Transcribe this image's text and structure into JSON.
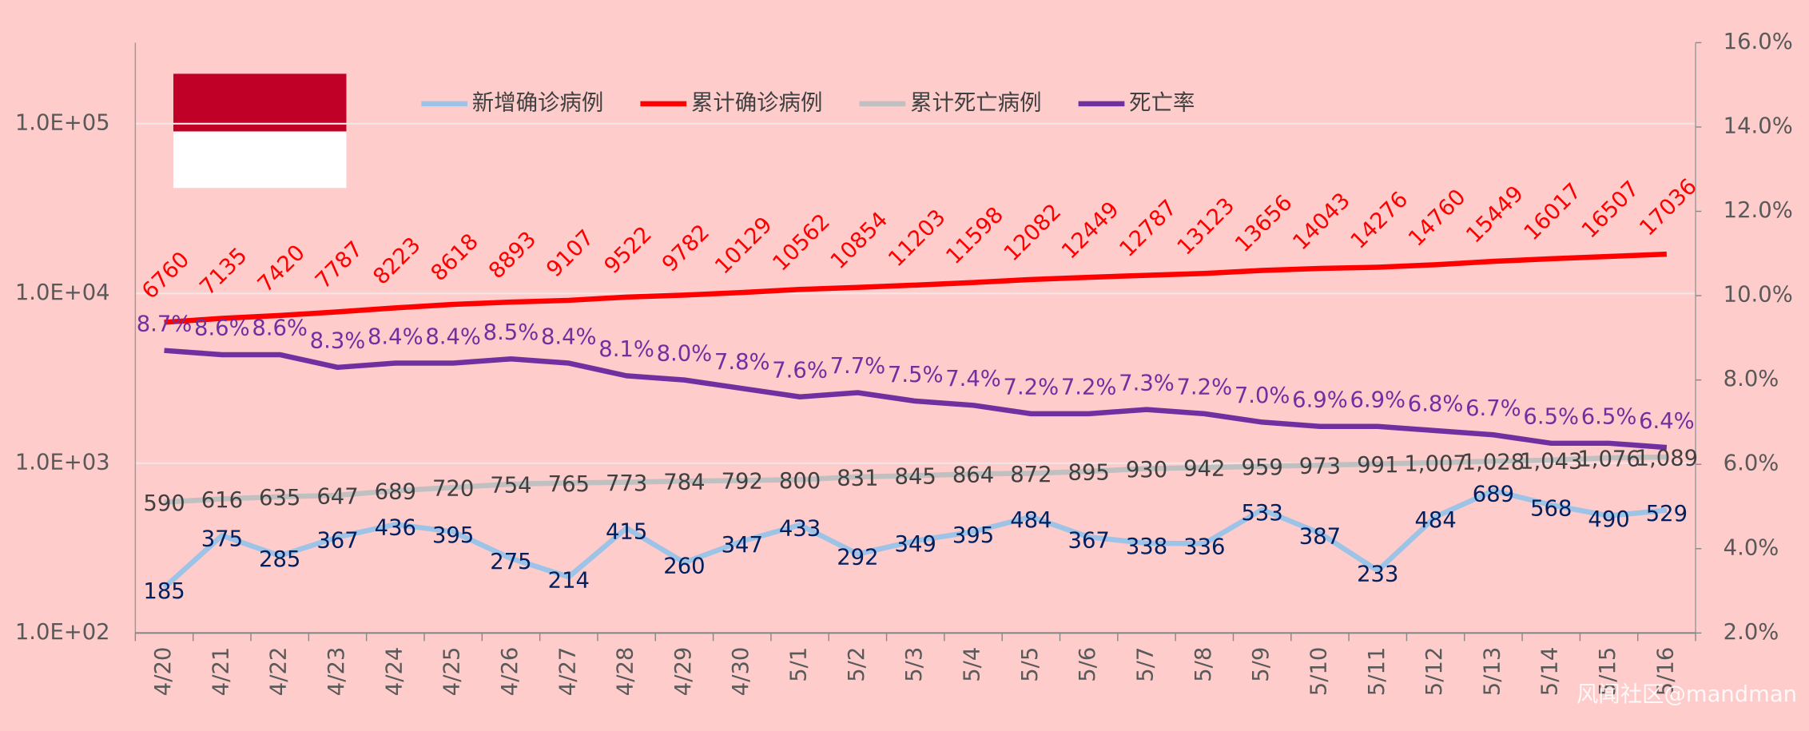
{
  "chart_data": {
    "type": "line",
    "categories": [
      "4/20",
      "4/21",
      "4/22",
      "4/23",
      "4/24",
      "4/25",
      "4/26",
      "4/27",
      "4/28",
      "4/29",
      "4/30",
      "5/1",
      "5/2",
      "5/3",
      "5/4",
      "5/5",
      "5/6",
      "5/7",
      "5/8",
      "5/9",
      "5/10",
      "5/11",
      "5/12",
      "5/13",
      "5/14",
      "5/15",
      "5/16"
    ],
    "series": [
      {
        "name": "新增确诊病例",
        "color": "#9dc3e6",
        "label_color": "#002060",
        "values": [
          185,
          375,
          285,
          367,
          436,
          395,
          275,
          214,
          415,
          260,
          347,
          433,
          292,
          349,
          395,
          484,
          367,
          338,
          336,
          533,
          387,
          233,
          484,
          689,
          568,
          490,
          529
        ]
      },
      {
        "name": "累计确诊病例",
        "color": "#ff0000",
        "label_color": "#ff0000",
        "values": [
          6760,
          7135,
          7420,
          7787,
          8223,
          8618,
          8893,
          9107,
          9522,
          9782,
          10129,
          10562,
          10854,
          11203,
          11598,
          12082,
          12449,
          12787,
          13123,
          13656,
          14043,
          14276,
          14760,
          15449,
          16017,
          16507,
          17036
        ]
      },
      {
        "name": "累计死亡病例",
        "color": "#c0c0c0",
        "label_color": "#404040",
        "values": [
          590,
          616,
          635,
          647,
          689,
          720,
          754,
          765,
          773,
          784,
          792,
          800,
          831,
          845,
          864,
          872,
          895,
          930,
          942,
          959,
          973,
          991,
          1007,
          1028,
          1043,
          1076,
          1089
        ],
        "value_labels": [
          "590",
          "616",
          "635",
          "647",
          "689",
          "720",
          "754",
          "765",
          "773",
          "784",
          "792",
          "800",
          "831",
          "845",
          "864",
          "872",
          "895",
          "930",
          "942",
          "959",
          "973",
          "991",
          "1,007",
          "1,028",
          "1,043",
          "1,076",
          "1,089"
        ]
      },
      {
        "name": "死亡率",
        "color": "#7030a0",
        "label_color": "#7030a0",
        "axis": "y2",
        "values": [
          8.7,
          8.6,
          8.6,
          8.3,
          8.4,
          8.4,
          8.5,
          8.4,
          8.1,
          8.0,
          7.8,
          7.6,
          7.7,
          7.5,
          7.4,
          7.2,
          7.2,
          7.3,
          7.2,
          7.0,
          6.9,
          6.9,
          6.8,
          6.7,
          6.5,
          6.5,
          6.4
        ],
        "value_labels": [
          "8.7%",
          "8.6%",
          "8.6%",
          "8.3%",
          "8.4%",
          "8.4%",
          "8.5%",
          "8.4%",
          "8.1%",
          "8.0%",
          "7.8%",
          "7.6%",
          "7.7%",
          "7.5%",
          "7.4%",
          "7.2%",
          "7.2%",
          "7.3%",
          "7.2%",
          "7.0%",
          "6.9%",
          "6.9%",
          "6.8%",
          "6.7%",
          "6.5%",
          "6.5%",
          "6.4%"
        ]
      }
    ],
    "ylim": [
      100,
      300000
    ],
    "log_y": true,
    "yticks": [
      {
        "value": 100,
        "label": "1.0E+02"
      },
      {
        "value": 1000,
        "label": "1.0E+03"
      },
      {
        "value": 10000,
        "label": "1.0E+04"
      },
      {
        "value": 100000,
        "label": "1.0E+05"
      }
    ],
    "y2lim": [
      2,
      16
    ],
    "y2ticks": [
      {
        "value": 2,
        "label": "2.0%"
      },
      {
        "value": 4,
        "label": "4.0%"
      },
      {
        "value": 6,
        "label": "6.0%"
      },
      {
        "value": 8,
        "label": "8.0%"
      },
      {
        "value": 10,
        "label": "10.0%"
      },
      {
        "value": 12,
        "label": "12.0%"
      },
      {
        "value": 14,
        "label": "14.0%"
      },
      {
        "value": 16,
        "label": "16.0%"
      }
    ],
    "grid": true,
    "legend": "top",
    "watermark": "风闻社区@mandman"
  }
}
